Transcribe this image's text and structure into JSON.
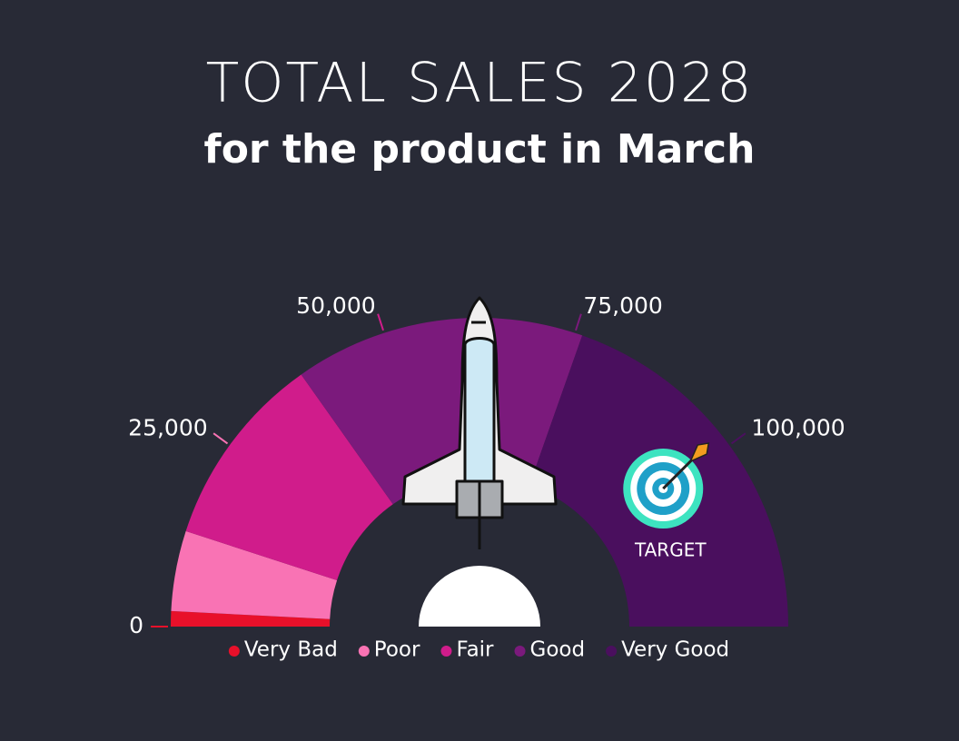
{
  "chart_data": {
    "type": "gauge",
    "title": "TOTAL SALES 2028",
    "subtitle": "for the product in March",
    "ylim": [
      0,
      125000
    ],
    "yticks": [
      0,
      {
        "value": 25000,
        "label": "25,000"
      },
      {
        "value": 50000,
        "label": "50,000"
      },
      {
        "value": 75000,
        "label": "75,000"
      },
      {
        "value": 100000,
        "label": "100,000"
      }
    ],
    "series": [
      {
        "name": "Very Bad",
        "color": "#e8102a",
        "values": [
          2000
        ]
      },
      {
        "name": "Poor",
        "color": "#f973b4",
        "values": [
          10500
        ]
      },
      {
        "name": "Fair",
        "color": "#d01c8b",
        "values": [
          25500
        ]
      },
      {
        "name": "Good",
        "color": "#7b1a7c",
        "values": [
          38000
        ]
      },
      {
        "name": "Very Good",
        "color": "#4a0f5e",
        "values": [
          49000
        ]
      }
    ],
    "value": 62500,
    "target": {
      "label": "TARGET",
      "value": 100000
    }
  }
}
